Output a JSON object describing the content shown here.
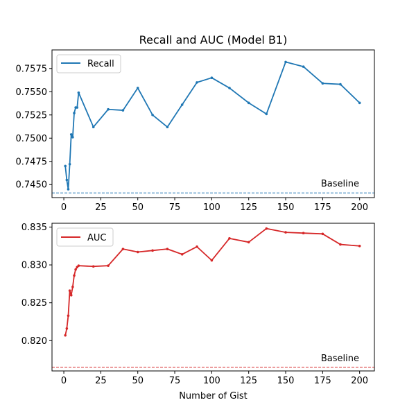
{
  "chart_data": [
    {
      "type": "line",
      "title": "Recall and AUC (Model B1)",
      "xlabel": "",
      "ylabel": "",
      "xlim": [
        -8,
        210
      ],
      "ylim": [
        0.7436,
        0.7595
      ],
      "xticks": [
        0,
        25,
        50,
        75,
        100,
        125,
        150,
        175,
        200
      ],
      "yticks": [
        0.745,
        0.7475,
        0.75,
        0.7525,
        0.755,
        0.7575
      ],
      "ytick_labels": [
        "0.7450",
        "0.7475",
        "0.7500",
        "0.7525",
        "0.7550",
        "0.7575"
      ],
      "legend_position": "top-left",
      "grid": false,
      "series": [
        {
          "name": "Recall",
          "color": "#1f77b4",
          "x": [
            1,
            2,
            3,
            4,
            5,
            6,
            7,
            8,
            9,
            10,
            20,
            30,
            40,
            50,
            60,
            70,
            80,
            90,
            100,
            112,
            125,
            137,
            150,
            162,
            175,
            187,
            200
          ],
          "y": [
            0.747,
            0.7455,
            0.7445,
            0.7472,
            0.7504,
            0.7501,
            0.7527,
            0.7533,
            0.7533,
            0.7549,
            0.7512,
            0.7531,
            0.753,
            0.7554,
            0.7525,
            0.7512,
            0.7536,
            0.756,
            0.7565,
            0.7554,
            0.7538,
            0.7526,
            0.7582,
            0.7577,
            0.7559,
            0.7558,
            0.7538
          ]
        }
      ],
      "baseline": {
        "label": "Baseline",
        "value": 0.7441,
        "color": "#1f77b4"
      }
    },
    {
      "type": "line",
      "title": "",
      "xlabel": "Number of Gist",
      "ylabel": "",
      "xlim": [
        -8,
        210
      ],
      "ylim": [
        0.816,
        0.8355
      ],
      "xticks": [
        0,
        25,
        50,
        75,
        100,
        125,
        150,
        175,
        200
      ],
      "yticks": [
        0.82,
        0.825,
        0.83,
        0.835
      ],
      "ytick_labels": [
        "0.820",
        "0.825",
        "0.830",
        "0.835"
      ],
      "legend_position": "top-left",
      "grid": false,
      "series": [
        {
          "name": "AUC",
          "color": "#d62728",
          "x": [
            1,
            2,
            3,
            4,
            5,
            6,
            7,
            8,
            9,
            10,
            20,
            30,
            40,
            50,
            60,
            70,
            80,
            90,
            100,
            112,
            125,
            137,
            150,
            162,
            175,
            187,
            200
          ],
          "y": [
            0.8207,
            0.8216,
            0.8233,
            0.8266,
            0.826,
            0.8271,
            0.8286,
            0.8294,
            0.8297,
            0.8299,
            0.8298,
            0.8299,
            0.8321,
            0.8317,
            0.8319,
            0.8321,
            0.8314,
            0.8324,
            0.8306,
            0.8335,
            0.833,
            0.8348,
            0.8343,
            0.8342,
            0.8341,
            0.8327,
            0.8325
          ]
        }
      ],
      "baseline": {
        "label": "Baseline",
        "value": 0.8165,
        "color": "#d62728"
      }
    }
  ]
}
